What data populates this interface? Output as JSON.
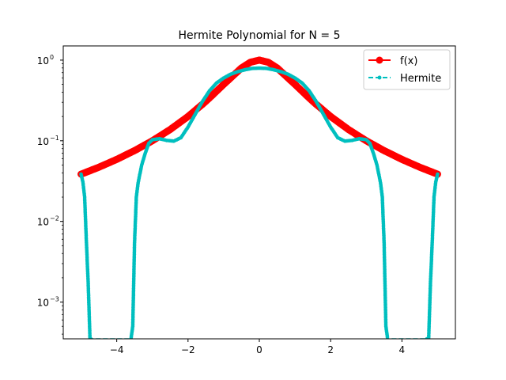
{
  "chart_data": {
    "type": "line",
    "title": "Hermite Polynomial for N = 5",
    "xlabel": "",
    "ylabel": "",
    "x_scale": "linear",
    "y_scale": "log",
    "xlim": [
      -5.5,
      5.5
    ],
    "ylim": [
      0.00035,
      1.5
    ],
    "grid": false,
    "legend_position": "top-right",
    "x_ticks": [
      {
        "value": -4,
        "label": "−4"
      },
      {
        "value": -2,
        "label": "−2"
      },
      {
        "value": 0,
        "label": "0"
      },
      {
        "value": 2,
        "label": "2"
      },
      {
        "value": 4,
        "label": "4"
      }
    ],
    "y_ticks": [
      {
        "value": 0.001,
        "base": "10",
        "exp": "−3"
      },
      {
        "value": 0.01,
        "base": "10",
        "exp": "−2"
      },
      {
        "value": 0.1,
        "base": "10",
        "exp": "−1"
      },
      {
        "value": 1,
        "base": "10",
        "exp": "0"
      }
    ],
    "series": [
      {
        "name": "f(x)",
        "color": "#ff0000",
        "line_style": "solid",
        "marker": "circle",
        "x": [
          -5.0,
          -4.5,
          -4.0,
          -3.5,
          -3.0,
          -2.5,
          -2.0,
          -1.5,
          -1.0,
          -0.5,
          -0.25,
          0.0,
          0.25,
          0.5,
          1.0,
          1.5,
          2.0,
          2.5,
          3.0,
          3.5,
          4.0,
          4.5,
          5.0
        ],
        "y": [
          0.0385,
          0.047,
          0.0588,
          0.0755,
          0.1,
          0.138,
          0.2,
          0.308,
          0.5,
          0.8,
          0.941,
          1.0,
          0.941,
          0.8,
          0.5,
          0.308,
          0.2,
          0.138,
          0.1,
          0.0755,
          0.0588,
          0.047,
          0.0385
        ]
      },
      {
        "name": "Hermite",
        "color": "#00bfbf",
        "line_style": "dashed",
        "marker": "point",
        "x": [
          -5.0,
          -4.95,
          -4.9,
          -4.85,
          -4.8,
          -4.75,
          -4.7,
          -3.6,
          -3.55,
          -3.5,
          -3.45,
          -3.4,
          -3.3,
          -3.2,
          -3.1,
          -3.0,
          -2.8,
          -2.6,
          -2.4,
          -2.2,
          -2.0,
          -1.8,
          -1.6,
          -1.4,
          -1.2,
          -1.0,
          -0.8,
          -0.6,
          -0.4,
          -0.2,
          0.0,
          0.2,
          0.4,
          0.6,
          0.8,
          1.0,
          1.2,
          1.4,
          1.6,
          1.8,
          2.0,
          2.2,
          2.4,
          2.6,
          2.8,
          3.0,
          3.1,
          3.2,
          3.3,
          3.4,
          3.45,
          3.5,
          3.55,
          3.6,
          4.7,
          4.75,
          4.8,
          4.85,
          4.9,
          4.95,
          5.0
        ],
        "y": [
          0.0385,
          0.031,
          0.02,
          0.0055,
          0.0017,
          0.00035,
          0.00035,
          0.00035,
          0.0005,
          0.0055,
          0.02,
          0.03,
          0.05,
          0.07,
          0.093,
          0.103,
          0.106,
          0.101,
          0.099,
          0.109,
          0.148,
          0.212,
          0.305,
          0.415,
          0.52,
          0.6,
          0.67,
          0.72,
          0.76,
          0.79,
          0.795,
          0.79,
          0.76,
          0.72,
          0.67,
          0.6,
          0.52,
          0.415,
          0.305,
          0.212,
          0.148,
          0.109,
          0.099,
          0.101,
          0.106,
          0.103,
          0.093,
          0.07,
          0.05,
          0.03,
          0.02,
          0.0055,
          0.0005,
          0.00035,
          0.00035,
          0.00035,
          0.0017,
          0.0055,
          0.02,
          0.031,
          0.0385
        ]
      }
    ]
  }
}
